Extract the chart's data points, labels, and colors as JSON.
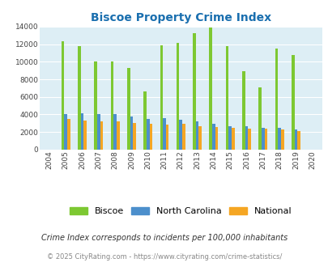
{
  "title": "Biscoe Property Crime Index",
  "years": [
    "2004",
    "2005",
    "2006",
    "2007",
    "2008",
    "2009",
    "2010",
    "2011",
    "2012",
    "2013",
    "2014",
    "2015",
    "2016",
    "2017",
    "2018",
    "2019",
    "2020"
  ],
  "biscoe": [
    0,
    12300,
    11800,
    10000,
    10000,
    9300,
    6600,
    11900,
    12200,
    13300,
    13900,
    11800,
    8900,
    7100,
    11500,
    10800,
    0
  ],
  "north_carolina": [
    0,
    4050,
    4150,
    4050,
    4050,
    3750,
    3450,
    3550,
    3350,
    3200,
    2900,
    2650,
    2650,
    2450,
    2450,
    2300,
    0
  ],
  "national": [
    0,
    3450,
    3300,
    3250,
    3250,
    3050,
    2950,
    2850,
    2900,
    2700,
    2600,
    2450,
    2350,
    2350,
    2250,
    2100,
    0
  ],
  "biscoe_color": "#7dc832",
  "nc_color": "#4c8fcc",
  "national_color": "#f5a623",
  "bg_color": "#ddeef5",
  "ylim": [
    0,
    14000
  ],
  "yticks": [
    0,
    2000,
    4000,
    6000,
    8000,
    10000,
    12000,
    14000
  ],
  "footnote1": "Crime Index corresponds to incidents per 100,000 inhabitants",
  "footnote2": "© 2025 CityRating.com - https://www.cityrating.com/crime-statistics/",
  "title_color": "#1a6faf",
  "footnote1_color": "#333333",
  "footnote2_color": "#888888",
  "bar_width": 0.18
}
